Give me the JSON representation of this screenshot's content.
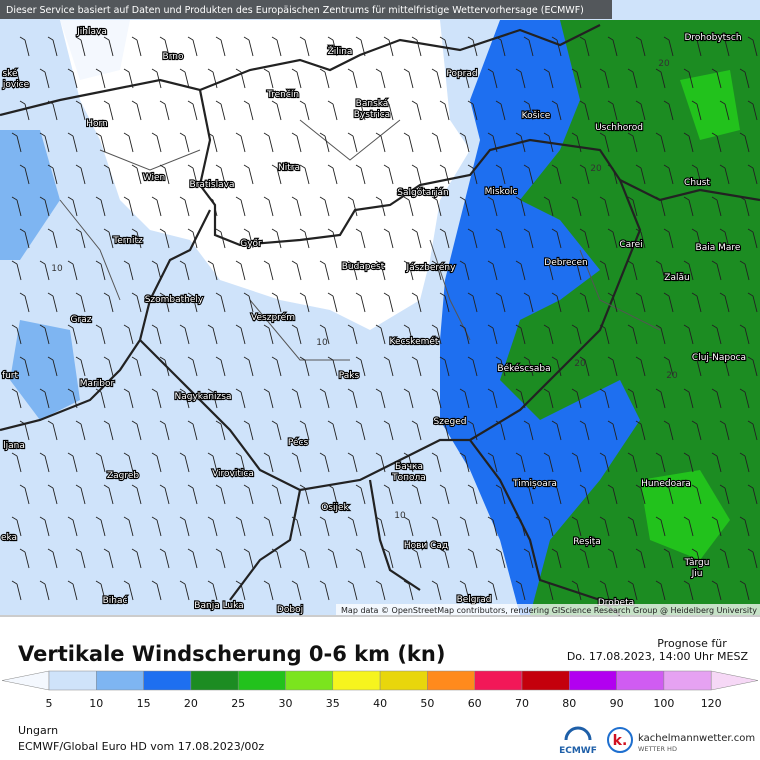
{
  "header": {
    "disclaimer": "Dieser Service basiert auf Daten und Produkten des Europäischen Zentrums für mittelfristige Wettervorhersage (ECMWF)",
    "attribution": "Map data © OpenStreetMap contributors, rendering GIScience Research Group @ Heidelberg University"
  },
  "map": {
    "cities": [
      "Jihlava",
      "Brno",
      "Žilina",
      "Poprad",
      "Drohobytsch",
      "ské",
      "jovice",
      "Trenčín",
      "Banská",
      "Bystrica",
      "Horn",
      "Košice",
      "Uschhorod",
      "Nitra",
      "Wien",
      "Bratislava",
      "Salgótarján",
      "Miskolc",
      "Chust",
      "Győr",
      "Ternitz",
      "Carei",
      "Baia Mare",
      "Debrecen",
      "Budapest",
      "Jászberény",
      "Szombathely",
      "Zalău",
      "Veszprém",
      "Graz",
      "Kecskemét",
      "Cluj-Napoca",
      "Békéscsaba",
      "Paks",
      "furt",
      "Maribor",
      "Nagykanizsa",
      "Szeged",
      "ljana",
      "Pécs",
      "Zagreb",
      "Virovitica",
      "Бачка",
      "Топола",
      "Timișoara",
      "Hunedoara",
      "Osijek",
      "eka",
      "Нови Сад",
      "Reșița",
      "Târgu",
      "Jiu",
      "Bihać",
      "Banja Luka",
      "Doboj",
      "Belgrad",
      "Drobeta"
    ],
    "contour_labels": [
      20,
      10,
      20,
      10,
      20,
      20,
      10
    ]
  },
  "legend": {
    "title": "Vertikale Windscherung 0-6 km (kn)",
    "ticks": [
      5,
      10,
      15,
      20,
      25,
      30,
      35,
      40,
      50,
      60,
      70,
      80,
      90,
      100,
      120
    ],
    "colors": [
      "#f4f8fe",
      "#cfe3fa",
      "#7eb5f2",
      "#1e6ff0",
      "#1c8c22",
      "#22c21c",
      "#7be41e",
      "#f6f41e",
      "#e8d60c",
      "#ff8a1c",
      "#f21858",
      "#c4000c",
      "#b200f0",
      "#d05cf2",
      "#e6a2f2",
      "#f6d8f6"
    ]
  },
  "forecast": {
    "label": "Prognose für",
    "time": "Do. 17.08.2023, 14:00 Uhr MESZ"
  },
  "footer": {
    "region": "Ungarn",
    "model": "ECMWF/Global Euro HD vom  17.08.2023/00z",
    "ecmwf": "ECMWF",
    "site": "kachelmannwetter.com",
    "site_sub": "WETTER HD"
  }
}
